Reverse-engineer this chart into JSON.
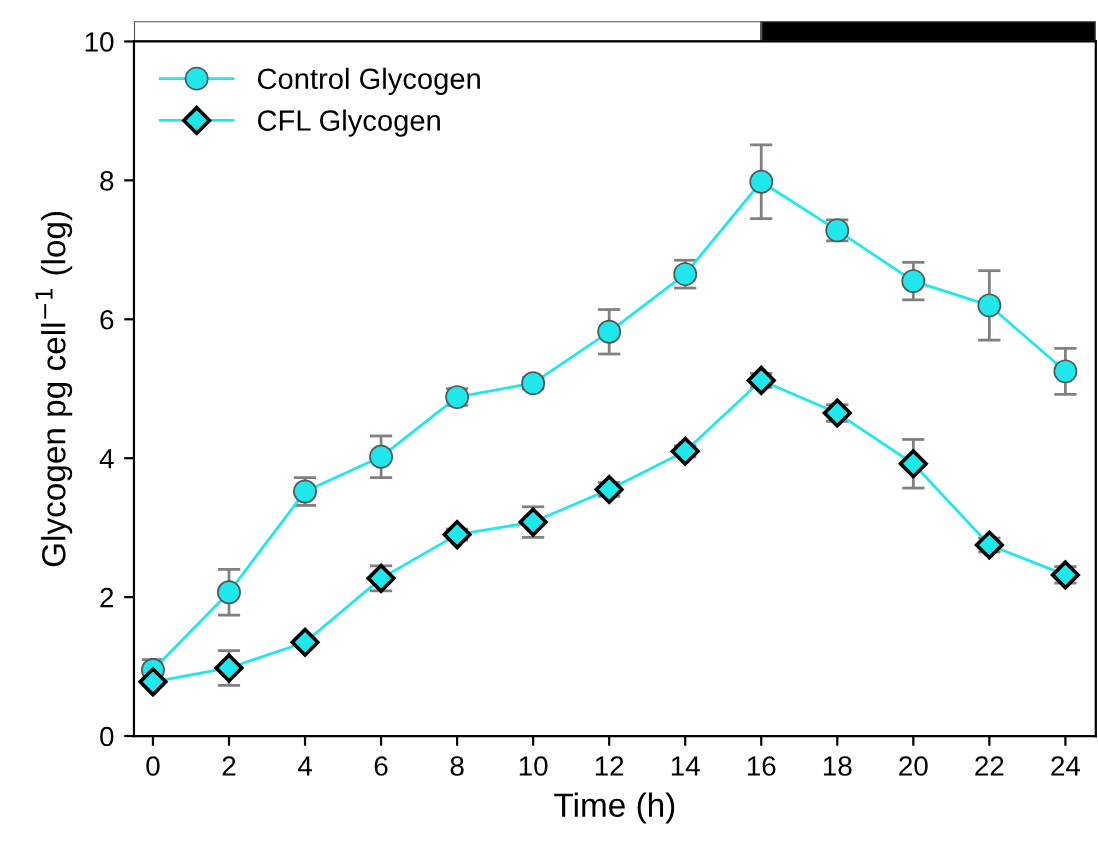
{
  "chart_data": [
    {
      "type": "bar",
      "orientation": "horizontal",
      "categories": [
        null
      ],
      "series": [
        {
          "color": "#ffffff",
          "base": [
            -0.5
          ],
          "values": [
            16.5
          ]
        },
        {
          "color": "#000000",
          "base": [
            16
          ],
          "values": [
            8.8
          ]
        }
      ],
      "xlim": [
        -0.5,
        24.8
      ],
      "xticks": [
        0,
        2,
        4,
        6,
        8,
        10,
        12,
        14,
        16,
        18,
        20,
        22,
        24
      ],
      "tick_labels": false,
      "grid": false
    },
    {
      "type": "line",
      "xlabel": "Time (h)",
      "ylabel": "Glycogen pg cell$^{−1}$ (log)",
      "x": [
        0,
        2,
        4,
        6,
        8,
        10,
        12,
        14,
        16,
        18,
        20,
        22,
        24
      ],
      "series": [
        {
          "name": "Control Glycogen",
          "color": "#1ee8ec",
          "marker": "circle",
          "values": [
            0.95,
            2.07,
            3.52,
            4.02,
            4.88,
            5.08,
            5.82,
            6.65,
            7.98,
            7.28,
            6.55,
            6.2,
            5.25
          ],
          "errors": [
            0.15,
            0.33,
            0.2,
            0.3,
            0.12,
            0.08,
            0.32,
            0.2,
            0.53,
            0.15,
            0.27,
            0.5,
            0.33
          ]
        },
        {
          "name": "CFL Glycogen",
          "color": "#1ee8ec",
          "marker": "diamond",
          "values": [
            0.78,
            0.98,
            1.35,
            2.27,
            2.9,
            3.08,
            3.55,
            4.1,
            5.12,
            4.65,
            3.92,
            2.75,
            2.32
          ],
          "errors": [
            0.05,
            0.25,
            0.05,
            0.18,
            0.08,
            0.22,
            0.1,
            0.08,
            0.1,
            0.12,
            0.35,
            0.1,
            0.12
          ]
        }
      ],
      "xlim": [
        -0.5,
        24.8
      ],
      "ylim": [
        0,
        10
      ],
      "xticks": [
        0,
        2,
        4,
        6,
        8,
        10,
        12,
        14,
        16,
        18,
        20,
        22,
        24
      ],
      "yticks": [
        0,
        2,
        4,
        6,
        8,
        10
      ],
      "legend": "top left",
      "grid": false
    }
  ]
}
